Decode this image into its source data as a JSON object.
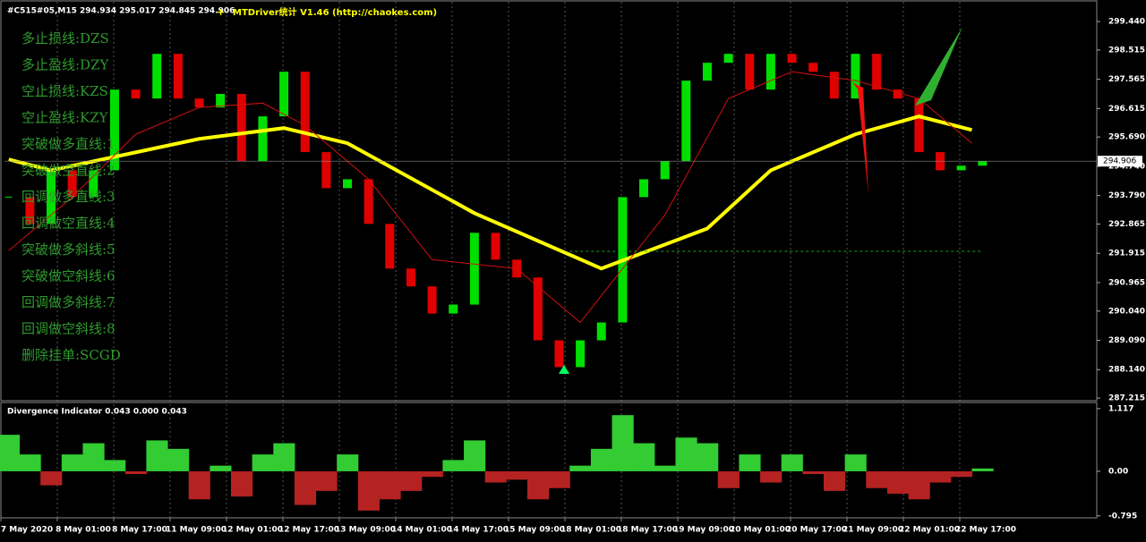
{
  "header": {
    "symbol_info": "#C515#05,M15  294.934 295.017 294.845 294.906",
    "tool": "MTDriver统计 V1.46  (http://chaokes.com)"
  },
  "menu": [
    "多止损线:DZS",
    "多止盈线:DZY",
    "空止损线:KZS",
    "空止盈线:KZY",
    "突破做多直线:1",
    "突破做空直线:2",
    "回调做多直线:3",
    "回调做空直线:4",
    "突破做多斜线:5",
    "突破做空斜线:6",
    "回调做多斜线:7",
    "回调做空斜线:8",
    "删除挂单:SCGD"
  ],
  "chart_data": [
    {
      "type": "candlestick",
      "xlim": [
        -0.2,
        51.4
      ],
      "ylim": [
        287.16,
        300.08
      ],
      "grid": true,
      "yticks": [
        {
          "value": 299.44,
          "label": "299.440"
        },
        {
          "value": 298.515,
          "label": "298.515"
        },
        {
          "value": 297.565,
          "label": "297.565"
        },
        {
          "value": 296.615,
          "label": "296.615"
        },
        {
          "value": 295.69,
          "label": "295.690"
        },
        {
          "value": 294.74,
          "label": "294.740"
        },
        {
          "value": 293.79,
          "label": "293.790"
        },
        {
          "value": 292.865,
          "label": "292.865"
        },
        {
          "value": 291.915,
          "label": "291.915"
        },
        {
          "value": 290.965,
          "label": "290.965"
        },
        {
          "value": 290.04,
          "label": "290.040"
        },
        {
          "value": 289.09,
          "label": "289.090"
        },
        {
          "value": 288.14,
          "label": "288.140"
        },
        {
          "value": 287.215,
          "label": "287.215"
        }
      ],
      "last_price": 294.906,
      "level": 291.98,
      "up_color": "#00e000",
      "down_color": "#e00000",
      "values": [
        293.74,
        292.87,
        294.61,
        293.74,
        294.61,
        297.23,
        296.94,
        298.39,
        296.94,
        296.65,
        297.09,
        294.91,
        296.36,
        297.81,
        295.2,
        294.03,
        294.32,
        292.87,
        291.42,
        290.84,
        289.96,
        290.25,
        292.58,
        291.71,
        291.13,
        289.09,
        288.22,
        289.09,
        289.67,
        293.74,
        294.32,
        294.91,
        297.52,
        298.1,
        298.39,
        297.23,
        298.39,
        298.1,
        297.81,
        296.94,
        298.39,
        297.23,
        296.94,
        295.2,
        294.61,
        294.76,
        294.906
      ],
      "overlays": [
        {
          "color": "#ffff00",
          "width": 4,
          "x": [
            0,
            2,
            9,
            13,
            16,
            22,
            28,
            33,
            36,
            40,
            43,
            45.5
          ],
          "values": [
            294.96,
            294.61,
            295.63,
            295.98,
            295.49,
            293.22,
            291.42,
            292.72,
            294.61,
            295.78,
            296.36,
            295.92
          ]
        },
        {
          "color": "#d01010",
          "width": 1,
          "x": [
            0,
            3,
            6,
            9,
            12,
            14,
            17,
            20,
            24,
            27,
            29,
            31,
            34,
            37,
            40,
            43,
            45.5
          ],
          "values": [
            292.0,
            293.74,
            295.78,
            296.65,
            296.79,
            296.07,
            294.32,
            291.71,
            291.42,
            289.67,
            291.42,
            293.16,
            296.94,
            297.81,
            297.52,
            296.94,
            295.49
          ]
        }
      ]
    },
    {
      "type": "bar",
      "title": "Divergence Indicator 0.043 0.000 0.043",
      "xlim": [
        -0.2,
        51.4
      ],
      "ylim": [
        -0.83,
        1.21
      ],
      "yticks": [
        1.117,
        {
          "value": 0,
          "label": "0.00"
        },
        -0.795
      ],
      "up_color": "#33cc33",
      "down_color": "#b52222",
      "values": [
        0.65,
        0.3,
        -0.25,
        0.3,
        0.5,
        0.2,
        -0.05,
        0.55,
        0.4,
        -0.5,
        0.1,
        -0.45,
        0.3,
        0.5,
        -0.6,
        -0.35,
        0.3,
        -0.7,
        -0.5,
        -0.35,
        -0.1,
        0.2,
        0.55,
        -0.2,
        -0.15,
        -0.5,
        -0.3,
        0.1,
        0.4,
        1.0,
        0.5,
        0.1,
        0.6,
        0.5,
        -0.3,
        0.3,
        -0.2,
        0.3,
        -0.05,
        -0.35,
        0.3,
        -0.3,
        -0.4,
        -0.5,
        -0.2,
        -0.1,
        0.05
      ],
      "time_labels": [
        "7 May 2020",
        "8 May 01:00",
        "8 May 17:00",
        "11 May 09:00",
        "12 May 01:00",
        "12 May 17:00",
        "13 May 09:00",
        "14 May 01:00",
        "14 May 17:00",
        "15 May 09:00",
        "18 May 01:00",
        "18 May 17:00",
        "19 May 09:00",
        "20 May 01:00",
        "20 May 17:00",
        "21 May 09:00",
        "22 May 01:00",
        "22 May 17:00"
      ]
    }
  ]
}
